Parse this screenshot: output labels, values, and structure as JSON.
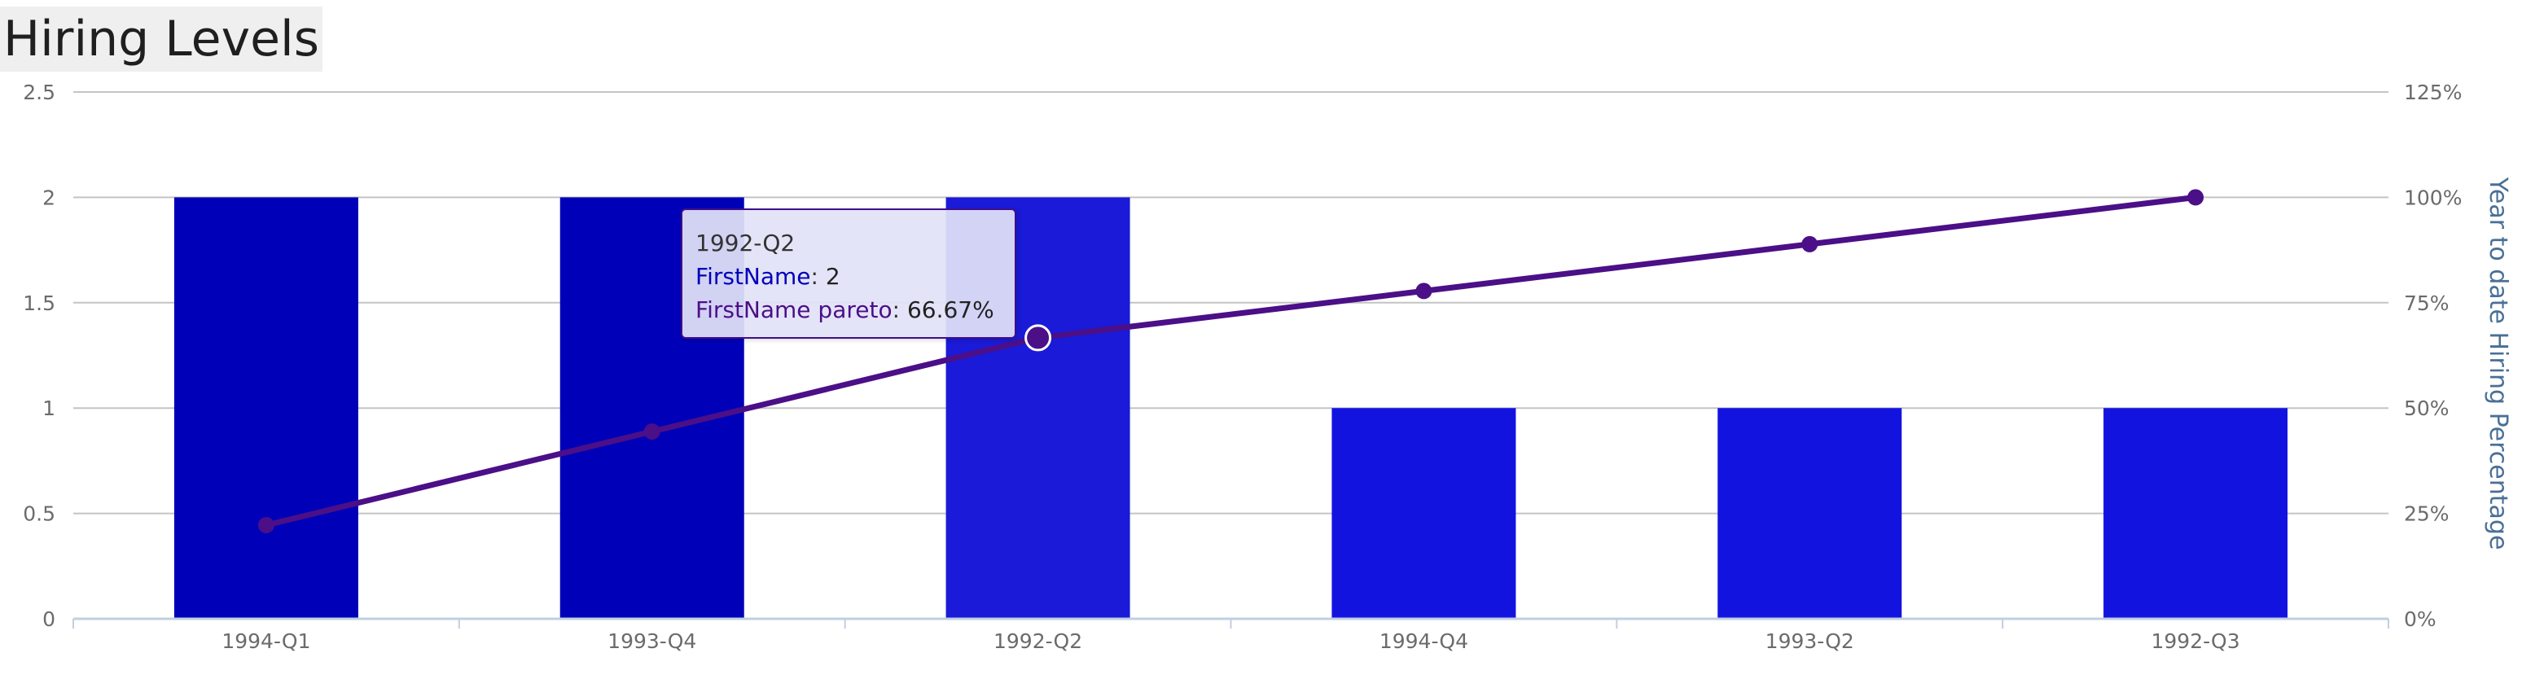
{
  "chart_data": {
    "type": "bar",
    "title": "Hiring Levels",
    "categories": [
      "1994-Q1",
      "1993-Q4",
      "1992-Q2",
      "1994-Q4",
      "1993-Q2",
      "1992-Q3"
    ],
    "series": [
      {
        "name": "FirstName",
        "type": "bar",
        "axis": "left",
        "values": [
          2,
          2,
          2,
          1,
          1,
          1
        ]
      },
      {
        "name": "FirstName pareto",
        "type": "line",
        "axis": "right",
        "values": [
          22.22,
          44.44,
          66.67,
          77.78,
          88.89,
          100
        ]
      }
    ],
    "y_left": {
      "label": "",
      "ylim": [
        0,
        2.5
      ],
      "ticks": [
        "0",
        "0.5",
        "1",
        "1.5",
        "2",
        "2.5"
      ],
      "tick_values": [
        0,
        0.5,
        1,
        1.5,
        2,
        2.5
      ]
    },
    "y_right": {
      "label": "Year to date Hiring Percentage",
      "ylim": [
        0,
        125
      ],
      "ticks": [
        "0%",
        "25%",
        "50%",
        "75%",
        "100%",
        "125%"
      ],
      "tick_values": [
        0,
        25,
        50,
        75,
        100,
        125
      ]
    },
    "grid": true,
    "legend": "none",
    "colors": {
      "bars": [
        "#0000b8",
        "#0000b8",
        "#1a1ad8",
        "#1313e0",
        "#1313e0",
        "#1313e0"
      ],
      "line": "#4b0f88",
      "grid": "#c4c4c4",
      "axis": "#c0cfe0"
    },
    "tooltip": {
      "category": "1992-Q2",
      "rows": [
        {
          "series": "FirstName",
          "value": "2"
        },
        {
          "series": "FirstName pareto",
          "value": "66.67%"
        }
      ]
    }
  }
}
